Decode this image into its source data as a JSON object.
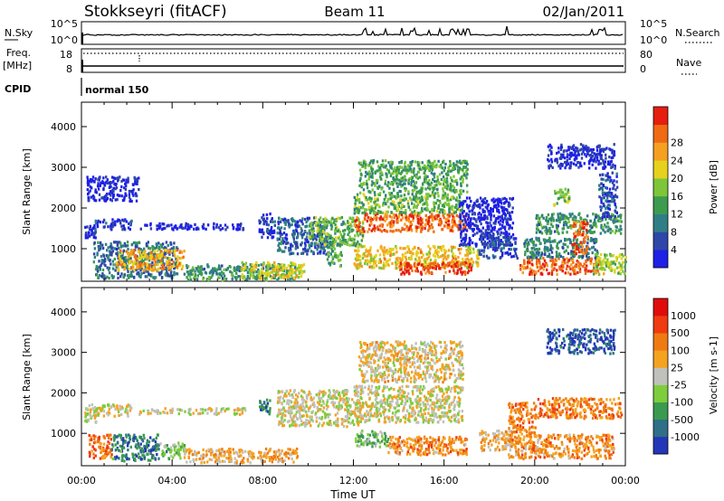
{
  "header": {
    "station": "Stokkseyri (fitACF)",
    "beam": "Beam 11",
    "date": "02/Jan/2011"
  },
  "side_labels": {
    "nsky": "N.Sky",
    "nsearch": "N.Search",
    "freq": "Freq.",
    "freq_unit": "[MHz]",
    "nave": "Nave",
    "cpid": "CPID"
  },
  "status_panels": {
    "nsky_ticks": [
      "10^5",
      "10^0"
    ],
    "nsearch_ticks": [
      "10^5",
      "10^0"
    ],
    "freq_ticks": [
      "18",
      "8"
    ],
    "nave_ticks": [
      "80",
      "0"
    ],
    "cpid_text": "normal 150"
  },
  "time_axis": {
    "label": "Time UT",
    "ticks": [
      "00:00",
      "04:00",
      "08:00",
      "12:00",
      "16:00",
      "20:00",
      "00:00"
    ]
  },
  "chart_data": [
    {
      "type": "heatmap",
      "quantity": "power",
      "ylabel": "Slant Range [km]",
      "yticks": [
        1000,
        2000,
        3000,
        4000
      ],
      "ylim": [
        200,
        4600
      ],
      "xlim": [
        "00:00",
        "24:00"
      ],
      "colorbar": {
        "label": "Power [dB]",
        "ticks": [
          "4",
          "8",
          "12",
          "16",
          "20",
          "24",
          "28"
        ],
        "colors": [
          "#1e20e6",
          "#2e46a8",
          "#2f7e86",
          "#3c9b4f",
          "#7dc63a",
          "#e6d21c",
          "#f5a020",
          "#f06a14",
          "#e61e10"
        ]
      },
      "regions": [
        {
          "t0": 0.1,
          "t1": 0.6,
          "r0": 1300,
          "r1": 1600,
          "level": 0.05
        },
        {
          "t0": 0.5,
          "t1": 4.2,
          "r0": 300,
          "r1": 1200,
          "level": 0.25
        },
        {
          "t0": 1.5,
          "t1": 4.5,
          "r0": 500,
          "r1": 1000,
          "level": 0.7
        },
        {
          "t0": 0.5,
          "t1": 2.2,
          "r0": 1500,
          "r1": 1750,
          "level": 0.15
        },
        {
          "t0": 2.5,
          "t1": 7.2,
          "r0": 1500,
          "r1": 1650,
          "level": 0.05
        },
        {
          "t0": 0.2,
          "t1": 2.5,
          "r0": 2200,
          "r1": 2800,
          "level": 0.03
        },
        {
          "t0": 4.5,
          "t1": 9.5,
          "r0": 250,
          "r1": 650,
          "level": 0.35
        },
        {
          "t0": 7.0,
          "t1": 9.8,
          "r0": 300,
          "r1": 700,
          "level": 0.6
        },
        {
          "t0": 7.8,
          "t1": 8.5,
          "r0": 1300,
          "r1": 1900,
          "level": 0.1
        },
        {
          "t0": 8.6,
          "t1": 10.8,
          "r0": 900,
          "r1": 1800,
          "level": 0.2
        },
        {
          "t0": 10.0,
          "t1": 12.4,
          "r0": 1100,
          "r1": 1800,
          "level": 0.45
        },
        {
          "t0": 10.8,
          "t1": 11.5,
          "r0": 600,
          "r1": 1200,
          "level": 0.4
        },
        {
          "t0": 12.0,
          "t1": 17.0,
          "r0": 1450,
          "r1": 1900,
          "level": 0.85
        },
        {
          "t0": 12.0,
          "t1": 16.8,
          "r0": 1900,
          "r1": 2400,
          "level": 0.45
        },
        {
          "t0": 12.2,
          "t1": 17.0,
          "r0": 2400,
          "r1": 3200,
          "level": 0.4
        },
        {
          "t0": 12.0,
          "t1": 17.5,
          "r0": 550,
          "r1": 1100,
          "level": 0.65
        },
        {
          "t0": 14.0,
          "t1": 17.2,
          "r0": 400,
          "r1": 700,
          "level": 0.9
        },
        {
          "t0": 16.6,
          "t1": 19.0,
          "r0": 1100,
          "r1": 2300,
          "level": 0.05
        },
        {
          "t0": 17.5,
          "t1": 19.2,
          "r0": 800,
          "r1": 1400,
          "level": 0.15
        },
        {
          "t0": 19.3,
          "t1": 22.8,
          "r0": 400,
          "r1": 800,
          "level": 0.85
        },
        {
          "t0": 19.5,
          "t1": 22.8,
          "r0": 800,
          "r1": 1300,
          "level": 0.3
        },
        {
          "t0": 20.0,
          "t1": 23.8,
          "r0": 1400,
          "r1": 1900,
          "level": 0.35
        },
        {
          "t0": 22.5,
          "t1": 24.0,
          "r0": 400,
          "r1": 900,
          "level": 0.55
        },
        {
          "t0": 20.5,
          "t1": 23.5,
          "r0": 3000,
          "r1": 3600,
          "level": 0.08
        },
        {
          "t0": 20.8,
          "t1": 21.5,
          "r0": 2100,
          "r1": 2500,
          "level": 0.5
        },
        {
          "t0": 22.8,
          "t1": 23.6,
          "r0": 1800,
          "r1": 2900,
          "level": 0.15
        },
        {
          "t0": 21.6,
          "t1": 22.3,
          "r0": 900,
          "r1": 1700,
          "level": 0.85
        }
      ]
    },
    {
      "type": "heatmap",
      "quantity": "velocity",
      "ylabel": "Slant Range [km]",
      "yticks": [
        1000,
        2000,
        3000,
        4000
      ],
      "ylim": [
        200,
        4600
      ],
      "xlim": [
        "00:00",
        "24:00"
      ],
      "colorbar": {
        "label": "Velocity [m s-1]",
        "ticks": [
          "1000",
          "500",
          "100",
          "25",
          "-25",
          "-100",
          "-500",
          "-1000"
        ],
        "colors": [
          "#2436b8",
          "#2f6f88",
          "#3a9a4f",
          "#7dcd3c",
          "#c0c0bc",
          "#f5a21e",
          "#f07a12",
          "#ef3a12",
          "#e00c0c"
        ]
      },
      "regions": [
        {
          "t0": 0.1,
          "t1": 0.7,
          "r0": 1300,
          "r1": 1650,
          "level": 0.5
        },
        {
          "t0": 0.3,
          "t1": 2.2,
          "r0": 1450,
          "r1": 1750,
          "level": 0.5
        },
        {
          "t0": 2.5,
          "t1": 7.2,
          "r0": 1500,
          "r1": 1650,
          "level": 0.5
        },
        {
          "t0": 0.3,
          "t1": 1.3,
          "r0": 400,
          "r1": 1000,
          "level": 0.75
        },
        {
          "t0": 1.3,
          "t1": 3.4,
          "r0": 350,
          "r1": 1000,
          "level": 0.2
        },
        {
          "t0": 3.4,
          "t1": 4.5,
          "r0": 400,
          "r1": 800,
          "level": 0.35
        },
        {
          "t0": 4.5,
          "t1": 9.5,
          "r0": 300,
          "r1": 650,
          "level": 0.62
        },
        {
          "t0": 7.8,
          "t1": 8.3,
          "r0": 1500,
          "r1": 1900,
          "level": 0.2
        },
        {
          "t0": 8.6,
          "t1": 12.3,
          "r0": 1200,
          "r1": 2100,
          "level": 0.5
        },
        {
          "t0": 12.0,
          "t1": 16.8,
          "r0": 1300,
          "r1": 2200,
          "level": 0.5
        },
        {
          "t0": 12.2,
          "t1": 16.8,
          "r0": 2300,
          "r1": 3300,
          "level": 0.55
        },
        {
          "t0": 12.0,
          "t1": 13.5,
          "r0": 700,
          "r1": 1100,
          "level": 0.35
        },
        {
          "t0": 13.5,
          "t1": 17.0,
          "r0": 500,
          "r1": 950,
          "level": 0.68
        },
        {
          "t0": 17.5,
          "t1": 19.0,
          "r0": 600,
          "r1": 1100,
          "level": 0.6
        },
        {
          "t0": 18.8,
          "t1": 23.5,
          "r0": 400,
          "r1": 1000,
          "level": 0.68
        },
        {
          "t0": 18.8,
          "t1": 20.0,
          "r0": 1000,
          "r1": 1800,
          "level": 0.72
        },
        {
          "t0": 20.0,
          "t1": 23.8,
          "r0": 1400,
          "r1": 1900,
          "level": 0.7
        },
        {
          "t0": 20.5,
          "t1": 23.5,
          "r0": 3000,
          "r1": 3600,
          "level": 0.1
        }
      ]
    }
  ]
}
